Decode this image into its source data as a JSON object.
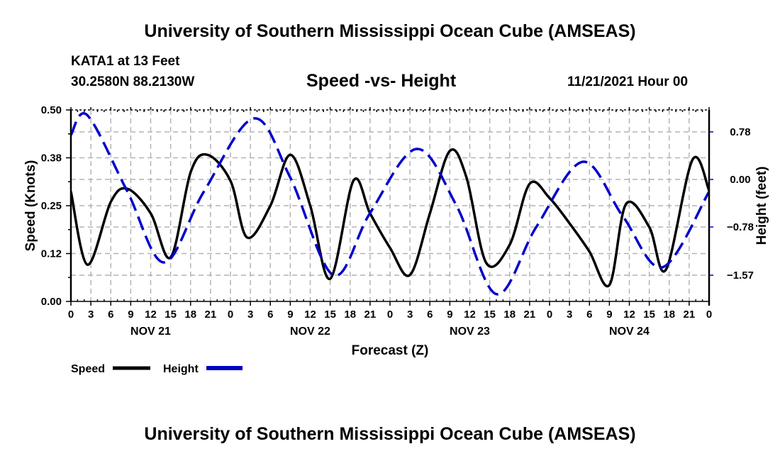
{
  "header": {
    "title": "University of Southern Mississippi Ocean Cube (AMSEAS)",
    "station": "KATA1 at 13 Feet",
    "coords": "30.2580N  88.2130W",
    "subtitle": "Speed -vs- Height",
    "datetime": "11/21/2021 Hour 00"
  },
  "footer": {
    "title": "University of Southern Mississippi Ocean Cube (AMSEAS)"
  },
  "chart_data": {
    "type": "line",
    "title": "Speed -vs- Height",
    "xlabel": "Forecast (Z)",
    "ylabel": "Speed (Knots)",
    "y2label": "Height (feet)",
    "grid": true,
    "legend_position": "bottom-left",
    "xlim": [
      0,
      96
    ],
    "ylim": [
      0,
      0.5
    ],
    "y2lim": [
      -2.0,
      1.14
    ],
    "x_tick_labels": [
      "0",
      "3",
      "6",
      "9",
      "12",
      "15",
      "18",
      "21",
      "0",
      "3",
      "6",
      "9",
      "12",
      "15",
      "18",
      "21",
      "0",
      "3",
      "6",
      "9",
      "12",
      "15",
      "18",
      "21",
      "0",
      "3",
      "6",
      "9",
      "12",
      "15",
      "18",
      "21",
      "0"
    ],
    "x_day_labels": [
      {
        "label": "NOV 21",
        "hour": 12
      },
      {
        "label": "NOV 22",
        "hour": 36
      },
      {
        "label": "NOV 23",
        "hour": 60
      },
      {
        "label": "NOV 24",
        "hour": 84
      }
    ],
    "y_ticks": [
      {
        "value": 0.0,
        "label": "0.00"
      },
      {
        "value": 0.125,
        "label": "0.12"
      },
      {
        "value": 0.25,
        "label": "0.25"
      },
      {
        "value": 0.375,
        "label": "0.38"
      },
      {
        "value": 0.5,
        "label": "0.50"
      }
    ],
    "y2_ticks": [
      {
        "value": 0.78,
        "label": "0.78"
      },
      {
        "value": 0.0,
        "label": "0.00"
      },
      {
        "value": -0.78,
        "label": "−0.78"
      },
      {
        "value": -1.57,
        "label": "−1.57"
      }
    ],
    "series": [
      {
        "name": "Speed",
        "axis": "left",
        "color": "#000000",
        "style": "solid",
        "x": [
          0,
          2.5,
          6,
          8.5,
          12,
          15,
          18,
          20.5,
          24,
          26.5,
          30,
          33,
          36,
          39,
          42.5,
          45,
          48,
          51,
          54,
          57,
          59.5,
          62.5,
          66,
          69,
          72,
          75,
          78,
          81,
          83.5,
          87,
          89.5,
          93.5,
          96
        ],
        "values": [
          0.287,
          0.096,
          0.26,
          0.294,
          0.23,
          0.115,
          0.337,
          0.383,
          0.315,
          0.167,
          0.25,
          0.383,
          0.25,
          0.059,
          0.315,
          0.23,
          0.14,
          0.069,
          0.23,
          0.393,
          0.324,
          0.1,
          0.148,
          0.307,
          0.27,
          0.204,
          0.13,
          0.043,
          0.254,
          0.194,
          0.083,
          0.37,
          0.29
        ]
      },
      {
        "name": "Height",
        "axis": "right",
        "color": "#0000cc",
        "style": "dashed",
        "x": [
          0,
          2.5,
          8.5,
          14,
          20,
          27.5,
          33,
          39.5,
          45,
          52,
          58,
          64,
          70,
          77,
          83,
          89,
          96
        ],
        "values": [
          0.73,
          1.05,
          -0.2,
          -1.36,
          -0.2,
          1.0,
          0.03,
          -1.57,
          -0.55,
          0.5,
          -0.43,
          -1.88,
          -0.78,
          0.29,
          -0.6,
          -1.44,
          -0.2
        ]
      }
    ]
  },
  "legend": [
    {
      "label": "Speed"
    },
    {
      "label": "Height"
    }
  ]
}
